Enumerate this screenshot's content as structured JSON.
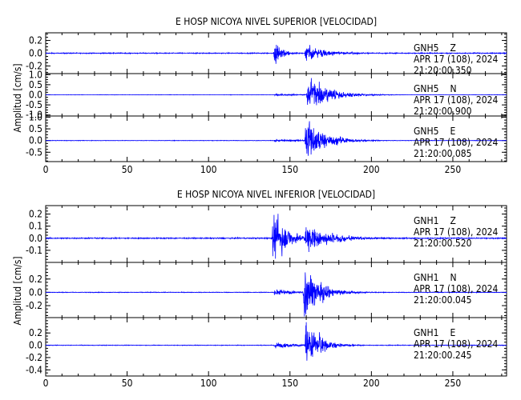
{
  "chart_data": [
    {
      "type": "line",
      "title": "E HOSP NICOYA NIVEL SUPERIOR [VELOCIDAD]",
      "ylabel": "Amplitud [cm/s]",
      "xlim": [
        0,
        283
      ],
      "xticks": [
        "0",
        "50",
        "100",
        "150",
        "200",
        "250"
      ],
      "panels": [
        {
          "station": "GNH5",
          "component": "Z",
          "date": "APR 17 (108), 2024",
          "time": "21:20:00.350",
          "ylim": [
            -0.32,
            0.32
          ],
          "yticks": [
            "-0.2",
            "0.0",
            "0.2"
          ],
          "events": [
            {
              "t": 140,
              "amp": 0.3,
              "decay": 4
            },
            {
              "t": 159,
              "amp": 0.12,
              "decay": 14
            }
          ],
          "noise": 0.006
        },
        {
          "station": "GNH5",
          "component": "N",
          "date": "APR 17 (108), 2024",
          "time": "21:20:00.900",
          "ylim": [
            -1.05,
            1.05
          ],
          "yticks": [
            "-1.0",
            "-0.5",
            "0.0",
            "0.5",
            "1.0"
          ],
          "events": [
            {
              "t": 140,
              "amp": 0.05,
              "decay": 20
            },
            {
              "t": 160,
              "amp": 1.0,
              "decay": 12
            }
          ],
          "noise": 0.006
        },
        {
          "station": "GNH5",
          "component": "E",
          "date": "APR 17 (108), 2024",
          "time": "21:20:00.085",
          "ylim": [
            -0.9,
            1.05
          ],
          "yticks": [
            "-0.5",
            "0.0",
            "0.5",
            "1.0"
          ],
          "events": [
            {
              "t": 140,
              "amp": 0.06,
              "decay": 18
            },
            {
              "t": 159,
              "amp": 1.0,
              "decay": 11
            }
          ],
          "noise": 0.008
        }
      ]
    },
    {
      "type": "line",
      "title": "E HOSP NICOYA NIVEL INFERIOR [VELOCIDAD]",
      "ylabel": "Amplitud [cm/s]",
      "xlim": [
        0,
        283
      ],
      "xticks": [
        "0",
        "50",
        "100",
        "150",
        "200",
        "250"
      ],
      "panels": [
        {
          "station": "GNH1",
          "component": "Z",
          "date": "APR 17 (108), 2024",
          "time": "21:20:00.520",
          "ylim": [
            -0.2,
            0.27
          ],
          "yticks": [
            "-0.1",
            "0.0",
            "0.1",
            "0.2"
          ],
          "events": [
            {
              "t": 139,
              "amp": 0.26,
              "decay": 8
            },
            {
              "t": 159,
              "amp": 0.14,
              "decay": 14
            }
          ],
          "noise": 0.004
        },
        {
          "station": "GNH1",
          "component": "N",
          "date": "APR 17 (108), 2024",
          "time": "21:20:00.045",
          "ylim": [
            -0.38,
            0.45
          ],
          "yticks": [
            "-0.2",
            "0.0",
            "0.2"
          ],
          "events": [
            {
              "t": 140,
              "amp": 0.05,
              "decay": 15
            },
            {
              "t": 158,
              "amp": 0.4,
              "decay": 10
            }
          ],
          "noise": 0.004
        },
        {
          "station": "GNH1",
          "component": "E",
          "date": "APR 17 (108), 2024",
          "time": "21:20:00.245",
          "ylim": [
            -0.5,
            0.45
          ],
          "yticks": [
            "-0.4",
            "-0.2",
            "0.0",
            "0.2"
          ],
          "events": [
            {
              "t": 140,
              "amp": 0.05,
              "decay": 15
            },
            {
              "t": 159,
              "amp": 0.5,
              "decay": 8
            }
          ],
          "noise": 0.004
        }
      ]
    }
  ],
  "colors": {
    "trace": "#0000ff",
    "axis": "#000000",
    "background": "#ffffff"
  }
}
